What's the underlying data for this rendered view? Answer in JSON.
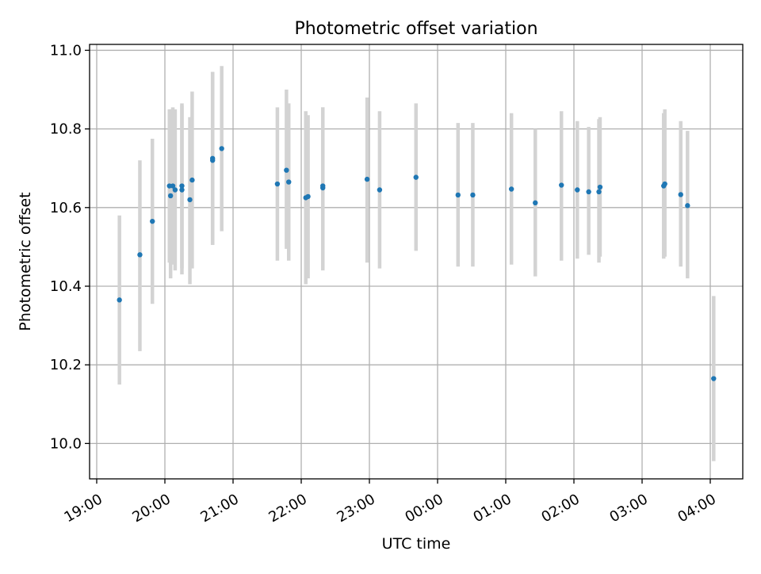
{
  "chart_data": {
    "type": "scatter",
    "title": "Photometric offset variation",
    "xlabel": "UTC time",
    "ylabel": "Photometric offset",
    "x_axis": {
      "kind": "time",
      "start": "19:00",
      "end": "04:30",
      "ticks": [
        "19:00",
        "20:00",
        "21:00",
        "22:00",
        "23:00",
        "00:00",
        "01:00",
        "02:00",
        "03:00",
        "04:00"
      ]
    },
    "ylim": [
      9.91,
      11.015
    ],
    "y_ticks": [
      "10.0",
      "10.2",
      "10.4",
      "10.6",
      "10.8",
      "11.0"
    ],
    "grid": true,
    "error_bar_color": "#d3d3d3",
    "point_color": "#1f77b4",
    "points": [
      {
        "time": "19:20",
        "y": 10.365,
        "low": 10.15,
        "high": 10.58
      },
      {
        "time": "19:38",
        "y": 10.48,
        "low": 10.235,
        "high": 10.72
      },
      {
        "time": "19:49",
        "y": 10.565,
        "low": 10.355,
        "high": 10.775
      },
      {
        "time": "20:04",
        "y": 10.655,
        "low": 10.46,
        "high": 10.85
      },
      {
        "time": "20:05",
        "y": 10.63,
        "low": 10.42,
        "high": 10.85
      },
      {
        "time": "20:07",
        "y": 10.655,
        "low": 10.455,
        "high": 10.855
      },
      {
        "time": "20:09",
        "y": 10.645,
        "low": 10.44,
        "high": 10.85
      },
      {
        "time": "20:15",
        "y": 10.655,
        "low": 10.445,
        "high": 10.865
      },
      {
        "time": "20:15",
        "y": 10.645,
        "low": 10.43,
        "high": 10.86
      },
      {
        "time": "20:22",
        "y": 10.62,
        "low": 10.405,
        "high": 10.83
      },
      {
        "time": "20:24",
        "y": 10.67,
        "low": 10.445,
        "high": 10.895
      },
      {
        "time": "20:42",
        "y": 10.72,
        "low": 10.505,
        "high": 10.945
      },
      {
        "time": "20:42",
        "y": 10.725,
        "low": 10.505,
        "high": 10.945
      },
      {
        "time": "20:50",
        "y": 10.75,
        "low": 10.54,
        "high": 10.96
      },
      {
        "time": "21:39",
        "y": 10.66,
        "low": 10.465,
        "high": 10.855
      },
      {
        "time": "21:47",
        "y": 10.695,
        "low": 10.495,
        "high": 10.9
      },
      {
        "time": "21:49",
        "y": 10.665,
        "low": 10.465,
        "high": 10.865
      },
      {
        "time": "22:04",
        "y": 10.625,
        "low": 10.405,
        "high": 10.845
      },
      {
        "time": "22:06",
        "y": 10.628,
        "low": 10.42,
        "high": 10.835
      },
      {
        "time": "22:19",
        "y": 10.65,
        "low": 10.44,
        "high": 10.855
      },
      {
        "time": "22:19",
        "y": 10.655,
        "low": 10.445,
        "high": 10.855
      },
      {
        "time": "22:58",
        "y": 10.672,
        "low": 10.46,
        "high": 10.88
      },
      {
        "time": "23:09",
        "y": 10.645,
        "low": 10.445,
        "high": 10.845
      },
      {
        "time": "23:41",
        "y": 10.677,
        "low": 10.49,
        "high": 10.865
      },
      {
        "time": "00:18",
        "y": 10.632,
        "low": 10.45,
        "high": 10.815
      },
      {
        "time": "00:31",
        "y": 10.632,
        "low": 10.45,
        "high": 10.815
      },
      {
        "time": "01:05",
        "y": 10.647,
        "low": 10.455,
        "high": 10.84
      },
      {
        "time": "01:26",
        "y": 10.612,
        "low": 10.425,
        "high": 10.8
      },
      {
        "time": "01:49",
        "y": 10.657,
        "low": 10.465,
        "high": 10.845
      },
      {
        "time": "02:03",
        "y": 10.645,
        "low": 10.47,
        "high": 10.82
      },
      {
        "time": "02:13",
        "y": 10.64,
        "low": 10.48,
        "high": 10.805
      },
      {
        "time": "02:22",
        "y": 10.64,
        "low": 10.46,
        "high": 10.825
      },
      {
        "time": "02:23",
        "y": 10.652,
        "low": 10.475,
        "high": 10.83
      },
      {
        "time": "03:19",
        "y": 10.655,
        "low": 10.47,
        "high": 10.84
      },
      {
        "time": "03:20",
        "y": 10.66,
        "low": 10.475,
        "high": 10.85
      },
      {
        "time": "03:34",
        "y": 10.633,
        "low": 10.45,
        "high": 10.82
      },
      {
        "time": "03:40",
        "y": 10.605,
        "low": 10.42,
        "high": 10.795
      },
      {
        "time": "04:03",
        "y": 10.165,
        "low": 9.955,
        "high": 10.375
      }
    ]
  }
}
